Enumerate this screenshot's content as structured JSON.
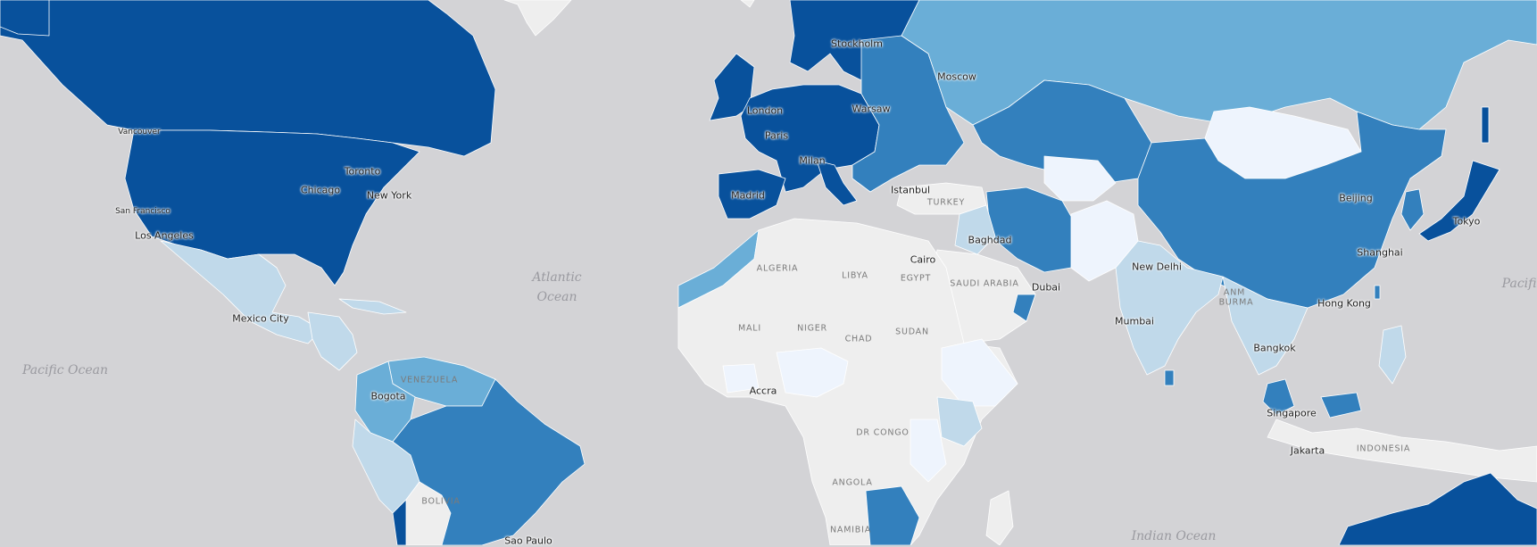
{
  "map": {
    "type": "choropleth",
    "palette": {
      "ocean": "#d3d3d6",
      "no_data": "#eeeeee",
      "level_1": "#eef4fd",
      "level_2": "#c0d9ea",
      "level_3": "#6aaed7",
      "level_4": "#3380bd",
      "level_5": "#08519c"
    },
    "regions": [
      {
        "name": "Greenland",
        "level": "no_data"
      },
      {
        "name": "Canada",
        "level": "level_5"
      },
      {
        "name": "United States",
        "level": "level_5"
      },
      {
        "name": "Mexico",
        "level": "level_2"
      },
      {
        "name": "Central America",
        "level": "level_2"
      },
      {
        "name": "Venezuela",
        "level": "level_3"
      },
      {
        "name": "Colombia",
        "level": "level_3"
      },
      {
        "name": "Brazil",
        "level": "level_4"
      },
      {
        "name": "Peru",
        "level": "level_2"
      },
      {
        "name": "Bolivia",
        "level": "no_data"
      },
      {
        "name": "Chile",
        "level": "level_5"
      },
      {
        "name": "Western Europe",
        "level": "level_5"
      },
      {
        "name": "Scandinavia",
        "level": "level_5"
      },
      {
        "name": "Eastern Europe",
        "level": "level_4"
      },
      {
        "name": "Russia",
        "level": "level_3"
      },
      {
        "name": "Kazakhstan",
        "level": "level_4"
      },
      {
        "name": "Iran",
        "level": "level_4"
      },
      {
        "name": "China",
        "level": "level_4"
      },
      {
        "name": "Mongolia",
        "level": "level_1"
      },
      {
        "name": "Japan",
        "level": "level_5"
      },
      {
        "name": "India",
        "level": "level_2"
      },
      {
        "name": "Pakistan",
        "level": "level_1"
      },
      {
        "name": "Morocco",
        "level": "level_3"
      },
      {
        "name": "North Africa",
        "level": "no_data"
      },
      {
        "name": "Nigeria",
        "level": "level_1"
      },
      {
        "name": "Ethiopia",
        "level": "level_1"
      },
      {
        "name": "Kenya",
        "level": "level_2"
      },
      {
        "name": "Southern Africa",
        "level": "level_4"
      },
      {
        "name": "Southeast Asia",
        "level": "level_2"
      },
      {
        "name": "Malaysia",
        "level": "level_4"
      },
      {
        "name": "Indonesia",
        "level": "no_data"
      },
      {
        "name": "Australia",
        "level": "level_5"
      }
    ]
  },
  "labels": {
    "cities": {
      "stockholm": "Stockholm",
      "moscow": "Moscow",
      "london": "London",
      "warsaw": "Warsaw",
      "paris": "Paris",
      "milan": "Milan",
      "istanbul": "Istanbul",
      "madrid": "Madrid",
      "vancouver": "Vancouver",
      "toronto": "Toronto",
      "chicago": "Chicago",
      "new_york": "New York",
      "san_francisco": "San Francisco",
      "los_angeles": "Los Angeles",
      "mexico_city": "Mexico City",
      "bogota": "Bogota",
      "sao_paulo": "Sao Paulo",
      "baghdad": "Baghdad",
      "cairo": "Cairo",
      "dubai": "Dubai",
      "new_delhi": "New Delhi",
      "mumbai": "Mumbai",
      "bangkok": "Bangkok",
      "singapore": "Singapore",
      "jakarta": "Jakarta",
      "beijing": "Beijing",
      "shanghai": "Shanghai",
      "hong_kong": "Hong Kong",
      "tokyo": "Tokyo",
      "accra": "Accra"
    },
    "countries": {
      "turkey": "TURKEY",
      "algeria": "ALGERIA",
      "libya": "LIBYA",
      "egypt": "EGYPT",
      "saudi_arabia": "SAUDI ARABIA",
      "mali": "MALI",
      "niger": "NIGER",
      "chad": "CHAD",
      "sudan": "SUDAN",
      "venezuela": "VENEZUELA",
      "dr_congo": "DR CONGO",
      "angola": "ANGOLA",
      "bolivia": "BOLIVIA",
      "namibia": "NAMIBIA",
      "indonesia": "INDONESIA",
      "burma": "BURMA",
      "myanmar_fragment": "ANM"
    },
    "oceans": {
      "atlantic": "Atlantic\nOcean",
      "pacific": "Pacific Ocean",
      "pacific_right": "Pacific",
      "indian": "Indian Ocean"
    }
  }
}
